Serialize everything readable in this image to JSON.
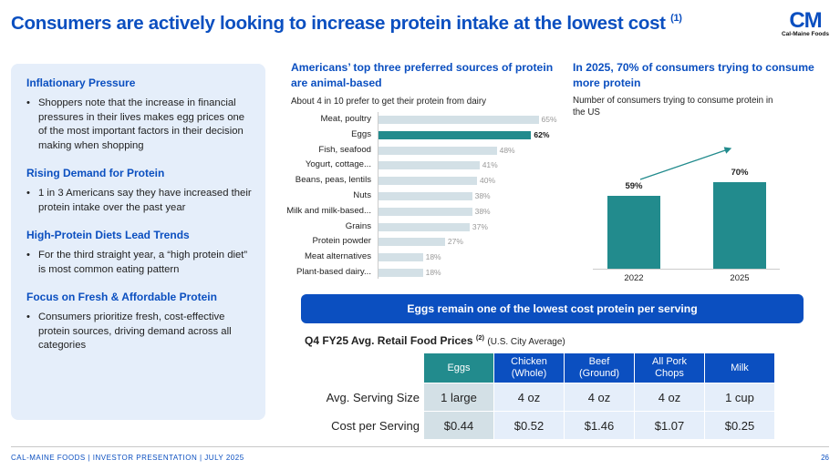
{
  "title": "Consumers are actively looking to increase protein intake at the lowest cost",
  "title_note": "(1)",
  "logo": {
    "mark": "CM",
    "name": "Cal-Maine Foods"
  },
  "panel": [
    {
      "heading": "Inflationary Pressure",
      "bullet": "Shoppers note that the increase in financial pressures in their lives makes egg prices one of the most important factors in their decision making when shopping"
    },
    {
      "heading": "Rising Demand for Protein",
      "bullet": "1 in 3 Americans say they have increased their protein intake over the past year"
    },
    {
      "heading": "High-Protein Diets Lead Trends",
      "bullet": "For the third straight year, a “high protein diet” is most common eating pattern"
    },
    {
      "heading": "Focus on Fresh & Affordable Protein",
      "bullet": "Consumers prioritize fresh, cost-effective protein sources, driving demand across all categories"
    }
  ],
  "chart_data": [
    {
      "type": "bar",
      "orientation": "horizontal",
      "title": "Americans’ top three preferred sources of protein are animal-based",
      "subtitle": "About 4 in 10 prefer to get their protein from dairy",
      "categories": [
        "Meat, poultry",
        "Eggs",
        "Fish, seafood",
        "Yogurt, cottage...",
        "Beans, peas, lentils",
        "Nuts",
        "Milk and milk-based...",
        "Grains",
        "Protein powder",
        "Meat alternatives",
        "Plant-based dairy..."
      ],
      "values": [
        65,
        62,
        48,
        41,
        40,
        38,
        38,
        37,
        27,
        18,
        18
      ],
      "labels": [
        "65%",
        "62%",
        "48%",
        "41%",
        "40%",
        "38%",
        "38%",
        "37%",
        "27%",
        "18%",
        "18%"
      ],
      "highlight": "Eggs",
      "colors": {
        "default": "#d3e0e6",
        "highlight": "#228b8d"
      }
    },
    {
      "type": "bar",
      "title": "In 2025, 70% of consumers trying to consume more protein",
      "subtitle": "Number of consumers trying to consume protein in the US",
      "categories": [
        "2022",
        "2025"
      ],
      "values": [
        59,
        70
      ],
      "labels": [
        "59%",
        "70%"
      ],
      "color": "#228b8d"
    }
  ],
  "banner": "Eggs remain one of the lowest cost protein per serving",
  "table": {
    "title": "Q4 FY25 Avg. Retail Food Prices",
    "note": "(2)",
    "subtitle": "(U.S. City Average)",
    "columns": [
      [
        "Eggs",
        ""
      ],
      [
        "Chicken",
        "(Whole)"
      ],
      [
        "Beef",
        "(Ground)"
      ],
      [
        "All Pork",
        "Chops"
      ],
      [
        "Milk",
        ""
      ]
    ],
    "rows": [
      {
        "label": "Avg. Serving Size",
        "values": [
          "1 large",
          "4 oz",
          "4 oz",
          "4 oz",
          "1 cup"
        ]
      },
      {
        "label": "Cost per Serving",
        "values": [
          "$0.44",
          "$0.52",
          "$1.46",
          "$1.07",
          "$0.25"
        ]
      }
    ]
  },
  "footer": "CAL-MAINE FOODS | INVESTOR PRESENTATION | JULY 2025",
  "page": "26",
  "colors": {
    "brand": "#0b4fc0",
    "teal": "#228b8d",
    "panel": "#e5eefa"
  }
}
